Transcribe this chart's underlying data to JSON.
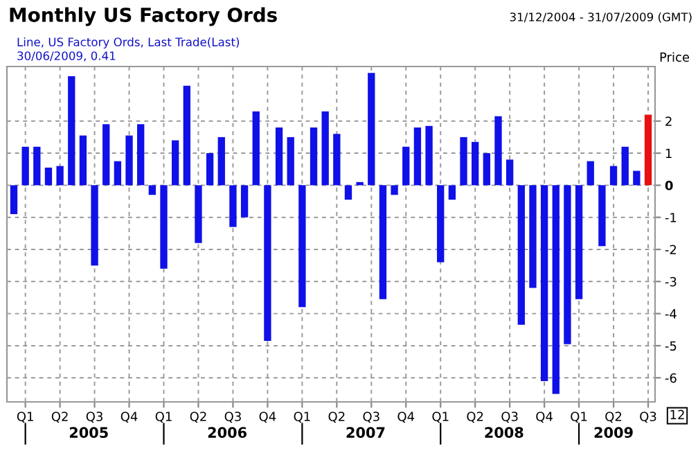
{
  "chart_data": {
    "type": "bar",
    "title": "Monthly US Factory Ords",
    "subtitle": "31/12/2004 - 31/07/2009 (GMT)",
    "ylabel": "Price",
    "categories": [
      null,
      "Q1",
      null,
      null,
      "Q2",
      null,
      null,
      "Q3",
      null,
      null,
      "Q4",
      null,
      null,
      "Q1",
      null,
      null,
      "Q2",
      null,
      null,
      "Q3",
      null,
      null,
      "Q4",
      null,
      null,
      "Q1",
      null,
      null,
      "Q2",
      null,
      null,
      "Q3",
      null,
      null,
      "Q4",
      null,
      null,
      "Q1",
      null,
      null,
      "Q2",
      null,
      null,
      "Q3",
      null,
      null,
      "Q4",
      null,
      null,
      "Q1",
      null,
      null,
      "Q2",
      null,
      null,
      "Q3"
    ],
    "values": [
      -0.9,
      1.2,
      1.2,
      0.55,
      0.6,
      3.4,
      1.55,
      -2.5,
      1.9,
      0.75,
      1.55,
      1.9,
      -0.3,
      -2.6,
      1.4,
      3.1,
      -1.8,
      1.0,
      1.5,
      -1.3,
      -1.0,
      2.3,
      -4.85,
      1.8,
      1.5,
      -3.8,
      1.8,
      2.3,
      1.6,
      -0.45,
      0.1,
      3.5,
      -3.55,
      -0.3,
      1.2,
      1.8,
      1.85,
      -2.4,
      -0.45,
      1.5,
      1.35,
      1.0,
      2.15,
      0.8,
      -4.35,
      -3.2,
      -6.1,
      -6.5,
      -4.95,
      -3.55,
      0.75,
      -1.9,
      0.6,
      1.2,
      0.45,
      2.2
    ],
    "colors": [
      "#1010e8",
      "#1010e8",
      "#1010e8",
      "#1010e8",
      "#1010e8",
      "#1010e8",
      "#1010e8",
      "#1010e8",
      "#1010e8",
      "#1010e8",
      "#1010e8",
      "#1010e8",
      "#1010e8",
      "#1010e8",
      "#1010e8",
      "#1010e8",
      "#1010e8",
      "#1010e8",
      "#1010e8",
      "#1010e8",
      "#1010e8",
      "#1010e8",
      "#1010e8",
      "#1010e8",
      "#1010e8",
      "#1010e8",
      "#1010e8",
      "#1010e8",
      "#1010e8",
      "#1010e8",
      "#1010e8",
      "#1010e8",
      "#1010e8",
      "#1010e8",
      "#1010e8",
      "#1010e8",
      "#1010e8",
      "#1010e8",
      "#1010e8",
      "#1010e8",
      "#1010e8",
      "#1010e8",
      "#1010e8",
      "#1010e8",
      "#1010e8",
      "#1010e8",
      "#1010e8",
      "#1010e8",
      "#1010e8",
      "#1010e8",
      "#1010e8",
      "#1010e8",
      "#1010e8",
      "#1010e8",
      "#1010e8",
      "#e81010"
    ],
    "ylim": [
      -6.75,
      3.7
    ],
    "yticks": [
      -6,
      -5,
      -4,
      -3,
      -2,
      -1,
      {
        "value": 0,
        "label": "0"
      },
      1,
      2
    ],
    "grid": true,
    "annotations": [
      "Line, US Factory Ords, Last Trade(Last)\n30/06/2009, 0.41",
      "2005",
      "2006",
      "2007",
      "2008",
      "2009",
      "12"
    ]
  }
}
